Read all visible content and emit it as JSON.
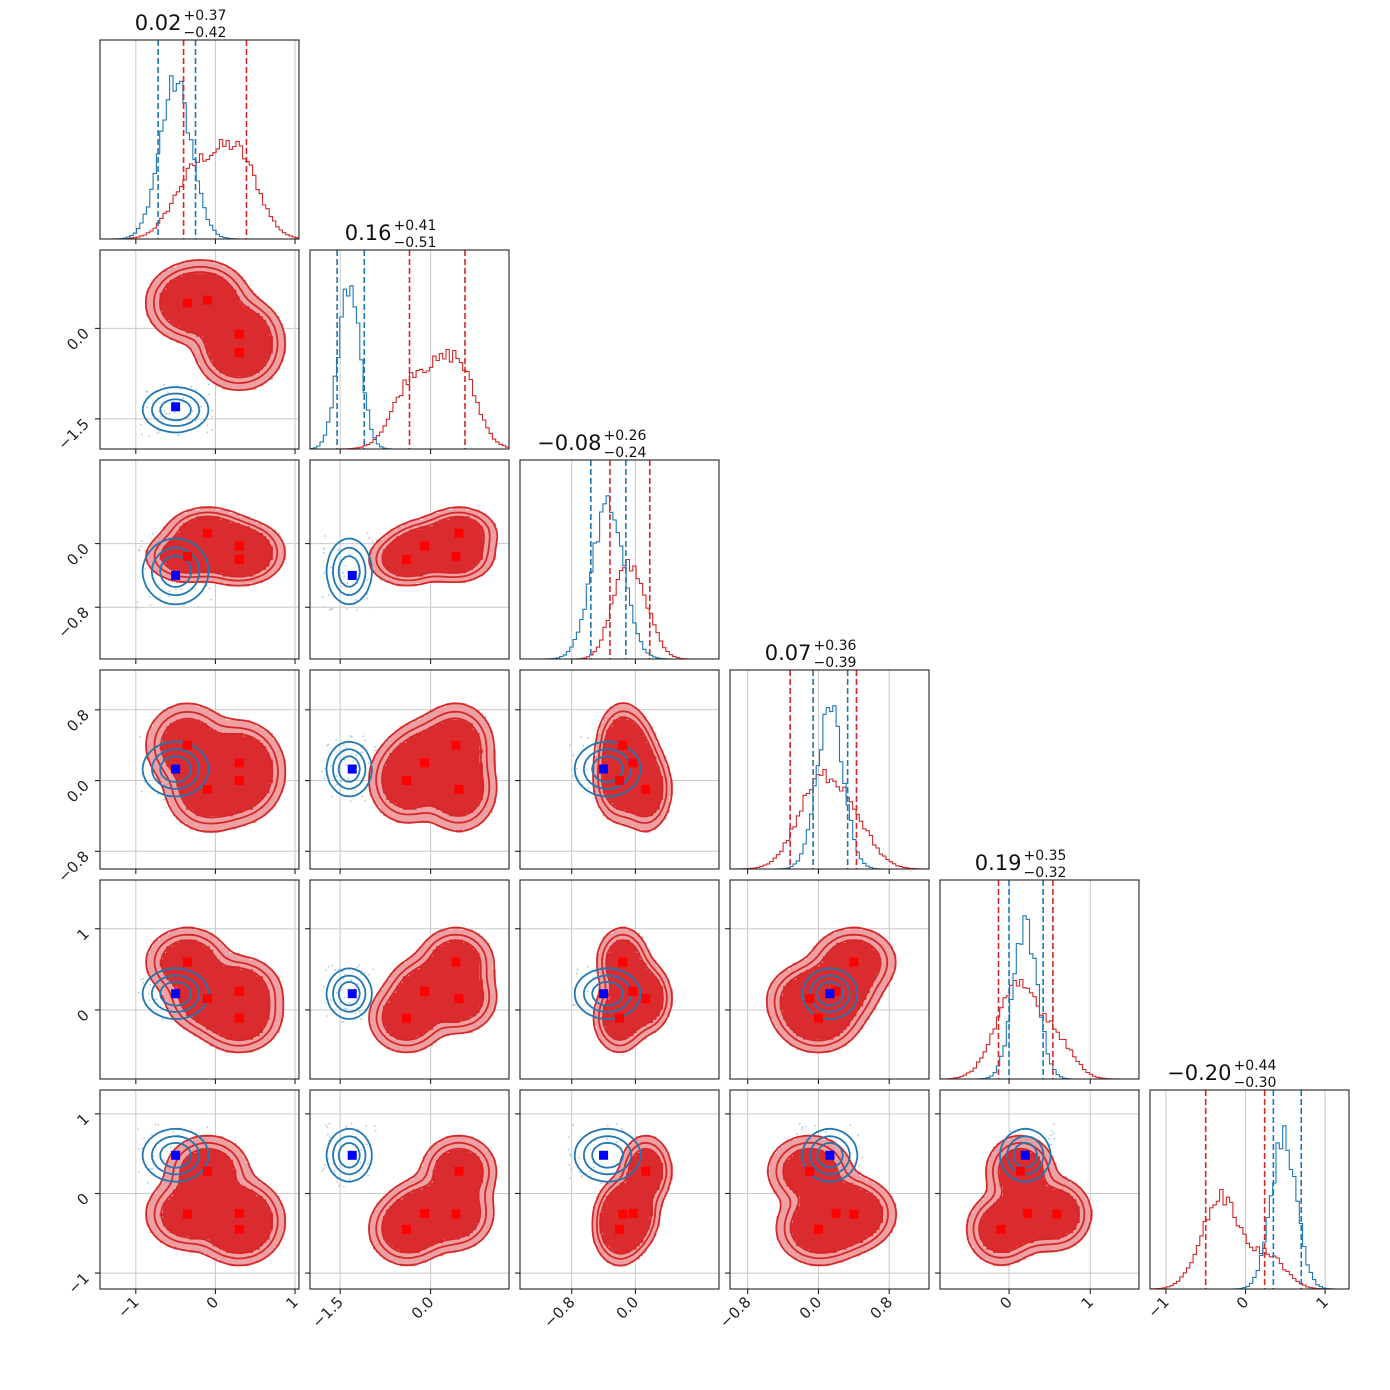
{
  "colors": {
    "series_a": "#d62728",
    "series_b": "#1f77b4",
    "marker_a": "#ff0000",
    "marker_b": "#0000ff",
    "fill_outer": "#eea0a2",
    "fill_inner": "#da2c2f"
  },
  "chart_data": {
    "type": "corner",
    "n_params": 6,
    "grid": true,
    "axes": [
      {
        "range": [
          -1.45,
          1.05
        ],
        "ticks": [
          -1,
          0,
          1
        ],
        "tick_labels": [
          "−1",
          "0",
          "1"
        ]
      },
      {
        "range": [
          -2.0,
          1.3
        ],
        "ticks": [
          -1.5,
          0.0
        ],
        "tick_labels": [
          "−1.5",
          "0.0"
        ]
      },
      {
        "range": [
          -1.45,
          1.05
        ],
        "ticks": [
          -0.8,
          0.0
        ],
        "tick_labels": [
          "−0.8",
          "0.0"
        ]
      },
      {
        "range": [
          -1.0,
          1.25
        ],
        "ticks": [
          -0.8,
          0.0,
          0.8
        ],
        "tick_labels": [
          "−0.8",
          "0.0",
          "0.8"
        ]
      },
      {
        "range": [
          -0.85,
          1.6
        ],
        "ticks": [
          0,
          1
        ],
        "tick_labels": [
          "0",
          "1"
        ]
      },
      {
        "range": [
          -1.2,
          1.3
        ],
        "ticks": [
          -1,
          0,
          1
        ],
        "tick_labels": [
          "−1",
          "0",
          "1"
        ]
      }
    ],
    "row_tick_labels": [
      [],
      [
        "0.0",
        "−1.5"
      ],
      [
        "0.0",
        "−0.8"
      ],
      [
        "0.8",
        "0.0",
        "−0.8"
      ],
      [
        "1",
        "0"
      ],
      [
        "1",
        "0",
        "−1"
      ]
    ],
    "titles": [
      {
        "value": "0.02",
        "plus": "+0.37",
        "minus": "−0.42"
      },
      {
        "value": "0.16",
        "plus": "+0.41",
        "minus": "−0.51"
      },
      {
        "value": "−0.08",
        "plus": "+0.26",
        "minus": "−0.24"
      },
      {
        "value": "0.07",
        "plus": "+0.36",
        "minus": "−0.39"
      },
      {
        "value": "0.19",
        "plus": "+0.35",
        "minus": "−0.32"
      },
      {
        "value": "−0.20",
        "plus": "+0.44",
        "minus": "−0.30"
      }
    ],
    "series_a_modes": [
      [
        -0.35,
        0.42,
        -0.16,
        0.4,
        0.59,
        -0.26
      ],
      [
        -0.1,
        0.47,
        0.13,
        -0.1,
        0.14,
        0.28
      ],
      [
        0.3,
        -0.1,
        -0.03,
        0.2,
        0.23,
        -0.25
      ],
      [
        0.3,
        -0.4,
        -0.2,
        0.0,
        -0.1,
        -0.45
      ]
    ],
    "series_b_point": [
      -0.5,
      -1.3,
      -0.4,
      0.13,
      0.2,
      0.48
    ],
    "series_a_mean": [
      0.0,
      -0.05,
      -0.08,
      0.05,
      0.19,
      -0.21
    ],
    "series_a_sd": [
      0.42,
      0.5,
      0.26,
      0.38,
      0.34,
      0.36
    ],
    "series_b_mean": [
      -0.5,
      -1.35,
      -0.35,
      0.13,
      0.2,
      0.48
    ],
    "series_b_sd": [
      0.2,
      0.18,
      0.2,
      0.15,
      0.15,
      0.16
    ],
    "series_a_quantiles": [
      [
        -0.4,
        0.39
      ],
      [
        -0.35,
        0.57
      ],
      [
        -0.32,
        0.18
      ],
      [
        -0.32,
        0.43
      ],
      [
        -0.13,
        0.54
      ],
      [
        -0.5,
        0.24
      ]
    ],
    "series_b_quantiles": [
      [
        -0.72,
        -0.25
      ],
      [
        -1.55,
        -1.1
      ],
      [
        -0.56,
        -0.12
      ],
      [
        -0.06,
        0.33
      ],
      [
        0.0,
        0.42
      ],
      [
        0.35,
        0.7
      ]
    ]
  }
}
